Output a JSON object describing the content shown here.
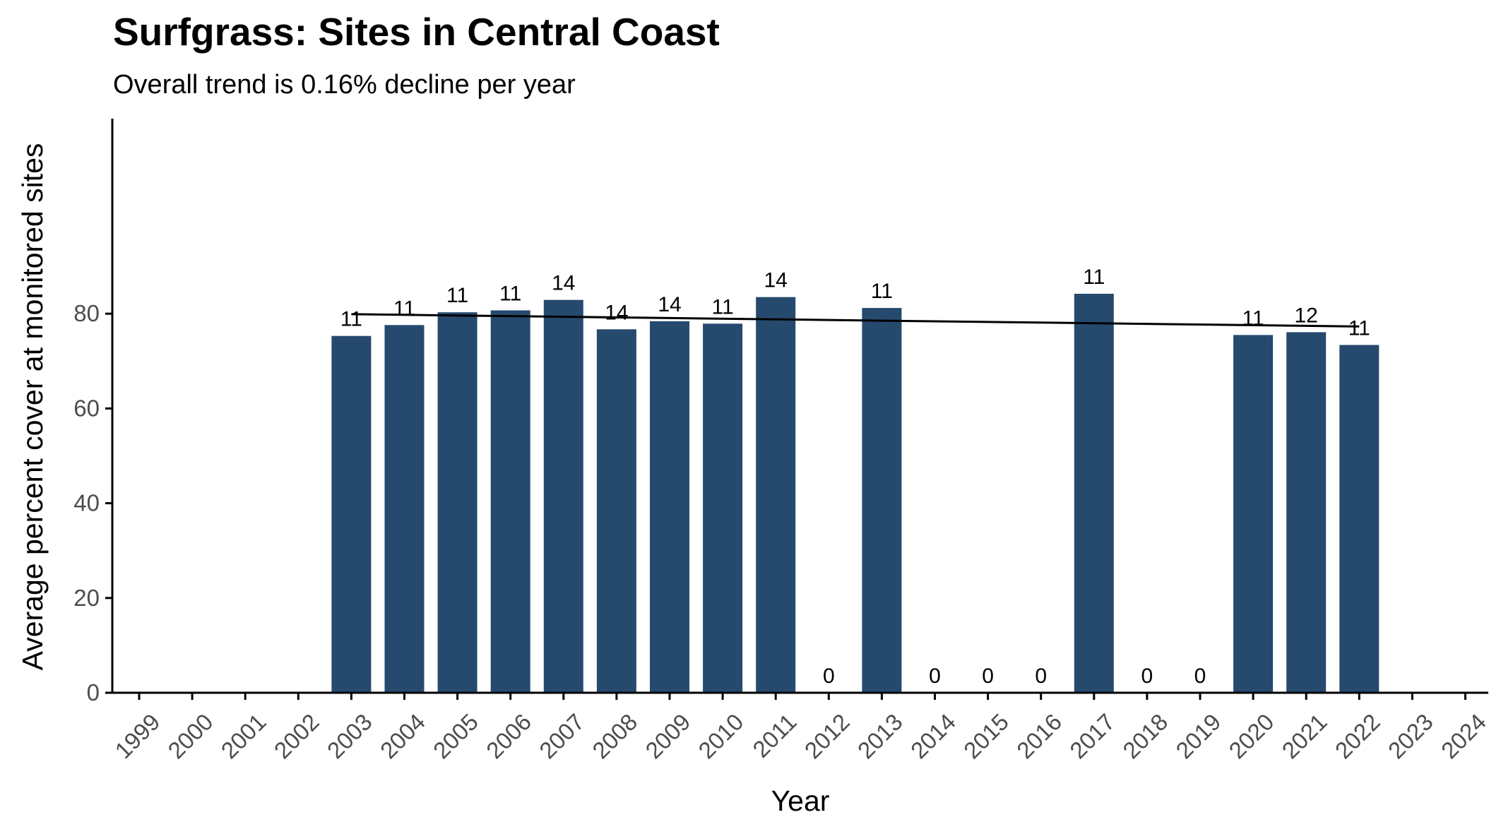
{
  "chart_data": {
    "type": "bar",
    "title": "Surfgrass: Sites in Central Coast",
    "subtitle": "Overall trend is 0.16% decline per year",
    "xlabel": "Year",
    "ylabel": "Average percent cover at monitored sites",
    "categories": [
      "1999",
      "2000",
      "2001",
      "2002",
      "2003",
      "2004",
      "2005",
      "2006",
      "2007",
      "2008",
      "2009",
      "2010",
      "2011",
      "2012",
      "2013",
      "2014",
      "2015",
      "2016",
      "2017",
      "2018",
      "2019",
      "2020",
      "2021",
      "2022",
      "2023",
      "2024"
    ],
    "values": [
      null,
      null,
      null,
      null,
      75.3,
      77.6,
      80.3,
      80.7,
      82.9,
      76.7,
      78.4,
      77.9,
      83.5,
      0,
      81.2,
      0,
      0,
      0,
      84.2,
      0,
      0,
      75.5,
      76.1,
      73.4,
      null,
      null
    ],
    "site_counts": [
      "",
      "",
      "",
      "",
      "11",
      "11",
      "11",
      "11",
      "14",
      "14",
      "14",
      "11",
      "14",
      "0",
      "11",
      "0",
      "0",
      "0",
      "11",
      "0",
      "0",
      "11",
      "12",
      "11",
      "",
      ""
    ],
    "yticks": [
      0,
      20,
      40,
      60,
      80
    ],
    "ylim": [
      0,
      97
    ],
    "grid": false,
    "bar_color": "#264a6e",
    "trend_line": {
      "x": [
        "2003",
        "2022"
      ],
      "y": [
        79.9,
        77.3
      ],
      "color": "#000000"
    }
  }
}
